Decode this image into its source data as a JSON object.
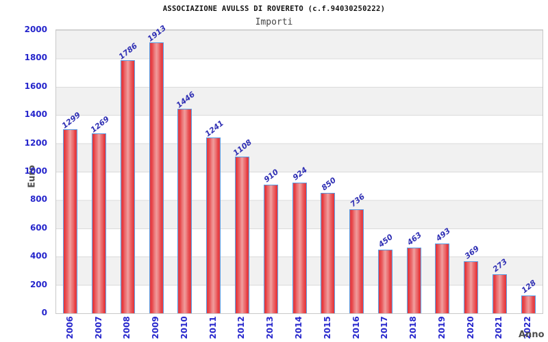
{
  "chart_data": {
    "type": "bar",
    "title": "ASSOCIAZIONE AVULSS DI ROVERETO (c.f.94030250222)",
    "subtitle": "Importi",
    "xlabel": "Anno",
    "ylabel": "Euro",
    "categories": [
      "2006",
      "2007",
      "2008",
      "2009",
      "2010",
      "2011",
      "2012",
      "2013",
      "2014",
      "2015",
      "2016",
      "2017",
      "2018",
      "2019",
      "2020",
      "2021",
      "2022"
    ],
    "values": [
      1299,
      1269,
      1786,
      1913,
      1446,
      1241,
      1108,
      910,
      924,
      850,
      736,
      450,
      463,
      493,
      369,
      273,
      128
    ],
    "ylim": [
      0,
      2000
    ],
    "ytick_step": 200,
    "yticks": [
      0,
      200,
      400,
      600,
      800,
      1000,
      1200,
      1400,
      1600,
      1800,
      2000
    ],
    "grid": "horizontal-bands-every-200",
    "legend_position": "none",
    "colors": {
      "bar_fill_edge": "#e3262b",
      "bar_fill_center": "#ef9493",
      "bar_border": "#5598e0",
      "tick_label": "#2626cc",
      "value_label": "#3030b4",
      "axis_title": "#4d4d4d",
      "band_gray": "#f1f1f1",
      "band_white": "#ffffff",
      "gridline": "#dadada",
      "title": "#111111",
      "subtitle": "#444444"
    }
  }
}
